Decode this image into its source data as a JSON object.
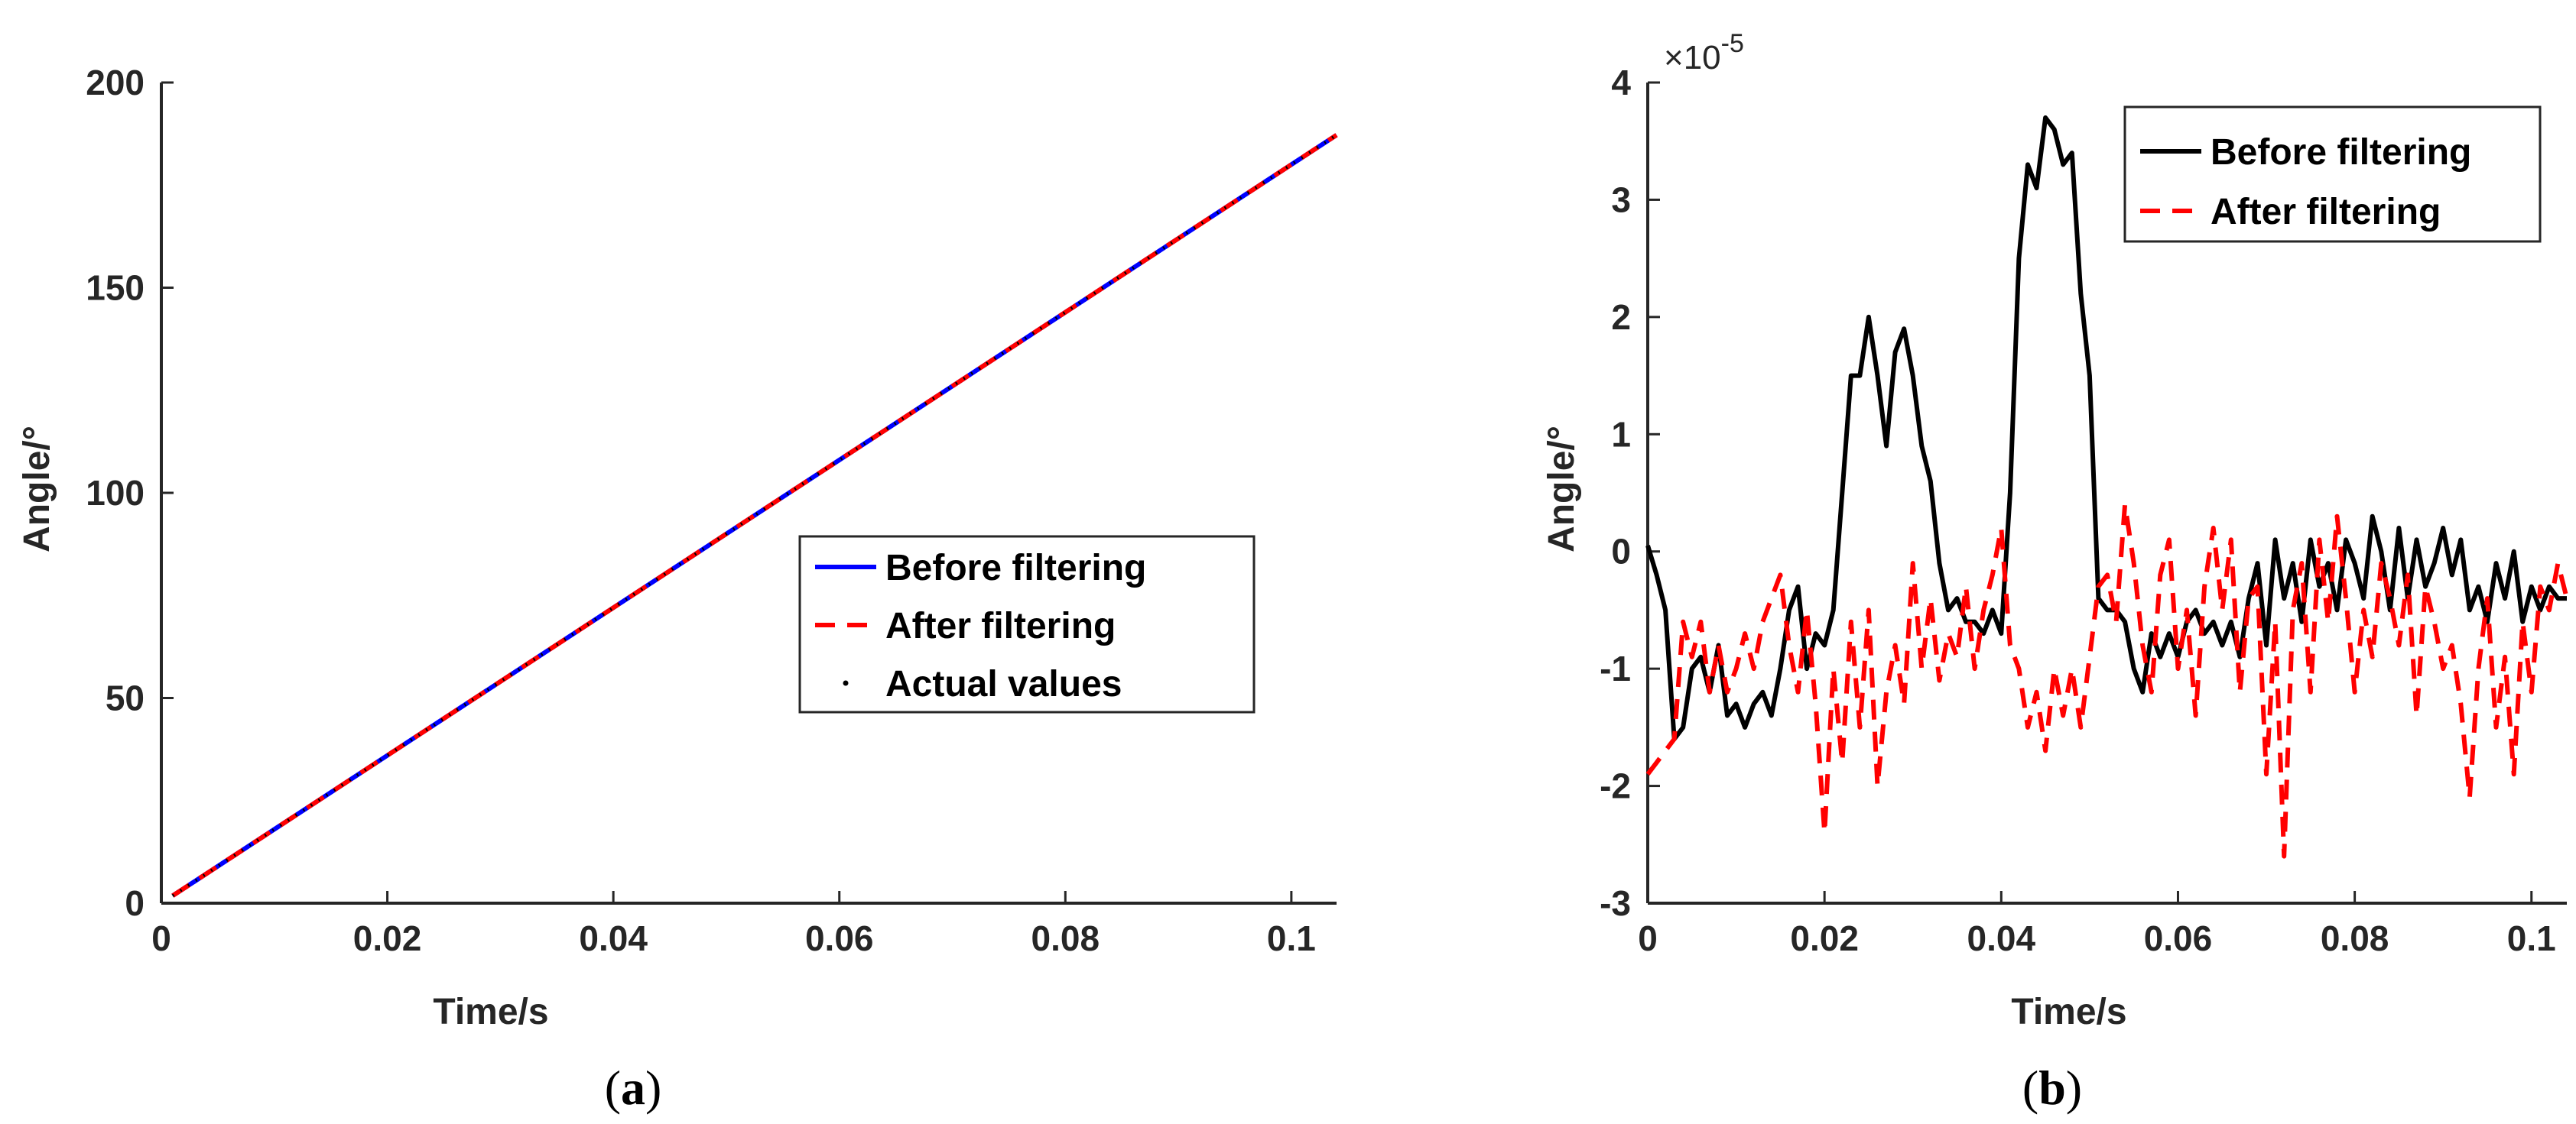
{
  "chart_data": [
    {
      "id": "a",
      "type": "line",
      "caption": "a",
      "xlabel": "Time/s",
      "ylabel": "Angle/°",
      "xlim": [
        0,
        0.104
      ],
      "ylim": [
        0,
        200
      ],
      "xticks": [
        0,
        0.02,
        0.04,
        0.06,
        0.08,
        0.1
      ],
      "xtick_labels": [
        "0",
        "0.02",
        "0.04",
        "0.06",
        "0.08",
        "0.1"
      ],
      "yticks": [
        0,
        50,
        100,
        150,
        200
      ],
      "ytick_labels": [
        "0",
        "50",
        "100",
        "150",
        "200"
      ],
      "legend_position": "center-right",
      "series": [
        {
          "name": "Before filtering",
          "color": "#0000ff",
          "style": "solid",
          "x": [
            0.001,
            0.104
          ],
          "y": [
            1.8,
            187.2
          ]
        },
        {
          "name": "After filtering",
          "color": "#ff0000",
          "style": "dashed",
          "x": [
            0.001,
            0.104
          ],
          "y": [
            1.8,
            187.2
          ]
        },
        {
          "name": "Actual values",
          "color": "#000000",
          "style": "dot",
          "x": [
            0.001,
            0.104
          ],
          "y": [
            1.8,
            187.2
          ]
        }
      ]
    },
    {
      "id": "b",
      "type": "line",
      "caption": "b",
      "xlabel": "Time/s",
      "ylabel": "Angle/°",
      "exponent_label": "×10",
      "exponent_power": "-5",
      "xlim": [
        0,
        0.104
      ],
      "ylim": [
        -3,
        4
      ],
      "xticks": [
        0,
        0.02,
        0.04,
        0.06,
        0.08,
        0.1
      ],
      "xtick_labels": [
        "0",
        "0.02",
        "0.04",
        "0.06",
        "0.08",
        "0.1"
      ],
      "yticks": [
        -3,
        -2,
        -1,
        0,
        1,
        2,
        3,
        4
      ],
      "ytick_labels": [
        "-3",
        "-2",
        "-1",
        "0",
        "1",
        "2",
        "3",
        "4"
      ],
      "legend_position": "top-right",
      "series": [
        {
          "name": "Before filtering",
          "color": "#000000",
          "style": "solid",
          "x": [
            0,
            0.001,
            0.002,
            0.003,
            0.004,
            0.005,
            0.006,
            0.007,
            0.008,
            0.009,
            0.01,
            0.011,
            0.012,
            0.013,
            0.014,
            0.015,
            0.016,
            0.017,
            0.018,
            0.019,
            0.02,
            0.021,
            0.022,
            0.023,
            0.024,
            0.025,
            0.026,
            0.027,
            0.028,
            0.029,
            0.03,
            0.031,
            0.032,
            0.033,
            0.034,
            0.035,
            0.036,
            0.037,
            0.038,
            0.039,
            0.04,
            0.041,
            0.042,
            0.043,
            0.044,
            0.045,
            0.046,
            0.047,
            0.048,
            0.049,
            0.05,
            0.051,
            0.052,
            0.053,
            0.054,
            0.055,
            0.056,
            0.057,
            0.058,
            0.059,
            0.06,
            0.061,
            0.062,
            0.063,
            0.064,
            0.065,
            0.066,
            0.067,
            0.068,
            0.069,
            0.07,
            0.071,
            0.072,
            0.073,
            0.074,
            0.075,
            0.076,
            0.077,
            0.078,
            0.079,
            0.08,
            0.081,
            0.082,
            0.083,
            0.084,
            0.085,
            0.086,
            0.087,
            0.088,
            0.089,
            0.09,
            0.091,
            0.092,
            0.093,
            0.094,
            0.095,
            0.096,
            0.097,
            0.098,
            0.099,
            0.1,
            0.101,
            0.102,
            0.103,
            0.104
          ],
          "y": [
            0.05,
            -0.2,
            -0.5,
            -1.6,
            -1.5,
            -1.0,
            -0.9,
            -1.2,
            -0.8,
            -1.4,
            -1.3,
            -1.5,
            -1.3,
            -1.2,
            -1.4,
            -1.0,
            -0.5,
            -0.3,
            -1.0,
            -0.7,
            -0.8,
            -0.5,
            0.5,
            1.5,
            1.5,
            2.0,
            1.5,
            0.9,
            1.7,
            1.9,
            1.5,
            0.9,
            0.6,
            -0.1,
            -0.5,
            -0.4,
            -0.6,
            -0.6,
            -0.7,
            -0.5,
            -0.7,
            0.5,
            2.5,
            3.3,
            3.1,
            3.7,
            3.6,
            3.3,
            3.4,
            2.2,
            1.5,
            -0.4,
            -0.5,
            -0.5,
            -0.6,
            -1.0,
            -1.2,
            -0.7,
            -0.9,
            -0.7,
            -0.9,
            -0.6,
            -0.5,
            -0.7,
            -0.6,
            -0.8,
            -0.6,
            -0.9,
            -0.4,
            -0.1,
            -0.8,
            0.1,
            -0.4,
            -0.1,
            -0.6,
            0.1,
            -0.3,
            -0.1,
            -0.5,
            0.1,
            -0.1,
            -0.4,
            0.3,
            0.0,
            -0.5,
            0.2,
            -0.4,
            0.1,
            -0.3,
            -0.1,
            0.2,
            -0.2,
            0.1,
            -0.5,
            -0.3,
            -0.6,
            -0.1,
            -0.4,
            0.0,
            -0.6,
            -0.3,
            -0.5,
            -0.3,
            -0.4,
            -0.4
          ]
        },
        {
          "name": "After filtering",
          "color": "#ff0000",
          "style": "dashed",
          "x": [
            0,
            0.001,
            0.002,
            0.003,
            0.004,
            0.005,
            0.006,
            0.007,
            0.008,
            0.009,
            0.01,
            0.011,
            0.012,
            0.013,
            0.014,
            0.015,
            0.016,
            0.017,
            0.018,
            0.019,
            0.02,
            0.021,
            0.022,
            0.023,
            0.024,
            0.025,
            0.026,
            0.027,
            0.028,
            0.029,
            0.03,
            0.031,
            0.032,
            0.033,
            0.034,
            0.035,
            0.036,
            0.037,
            0.038,
            0.039,
            0.04,
            0.041,
            0.042,
            0.043,
            0.044,
            0.045,
            0.046,
            0.047,
            0.048,
            0.049,
            0.05,
            0.051,
            0.052,
            0.053,
            0.054,
            0.055,
            0.056,
            0.057,
            0.058,
            0.059,
            0.06,
            0.061,
            0.062,
            0.063,
            0.064,
            0.065,
            0.066,
            0.067,
            0.068,
            0.069,
            0.07,
            0.071,
            0.072,
            0.073,
            0.074,
            0.075,
            0.076,
            0.077,
            0.078,
            0.079,
            0.08,
            0.081,
            0.082,
            0.083,
            0.084,
            0.085,
            0.086,
            0.087,
            0.088,
            0.089,
            0.09,
            0.091,
            0.092,
            0.093,
            0.094,
            0.095,
            0.096,
            0.097,
            0.098,
            0.099,
            0.1,
            0.101,
            0.102,
            0.103,
            0.104
          ],
          "y": [
            -1.9,
            -1.8,
            -1.7,
            -1.6,
            -0.6,
            -0.9,
            -0.6,
            -1.2,
            -0.8,
            -1.2,
            -1.0,
            -0.7,
            -1.0,
            -0.6,
            -0.4,
            -0.2,
            -0.8,
            -1.2,
            -0.5,
            -1.3,
            -2.4,
            -1.0,
            -1.8,
            -0.6,
            -1.5,
            -0.5,
            -2.0,
            -1.2,
            -0.8,
            -1.3,
            -0.1,
            -1.0,
            -0.4,
            -1.1,
            -0.7,
            -0.9,
            -0.3,
            -1.0,
            -0.5,
            -0.2,
            0.2,
            -0.8,
            -1.0,
            -1.5,
            -1.2,
            -1.7,
            -1.0,
            -1.4,
            -1.0,
            -1.5,
            -0.9,
            -0.3,
            -0.2,
            -0.6,
            0.4,
            -0.1,
            -0.8,
            -1.2,
            -0.2,
            0.1,
            -1.0,
            -0.5,
            -1.4,
            -0.3,
            0.2,
            -0.5,
            0.1,
            -1.2,
            -0.4,
            -0.3,
            -1.9,
            -0.6,
            -2.6,
            -0.5,
            -0.1,
            -1.2,
            0.1,
            -0.6,
            0.3,
            -0.4,
            -1.2,
            -0.5,
            -0.9,
            -0.1,
            -0.4,
            -0.8,
            -0.2,
            -1.4,
            -0.3,
            -0.6,
            -1.0,
            -0.8,
            -1.3,
            -2.1,
            -1.0,
            -0.4,
            -1.5,
            -0.9,
            -1.9,
            -0.6,
            -1.2,
            -0.3,
            -0.5,
            -0.1,
            -0.4
          ]
        }
      ]
    }
  ]
}
